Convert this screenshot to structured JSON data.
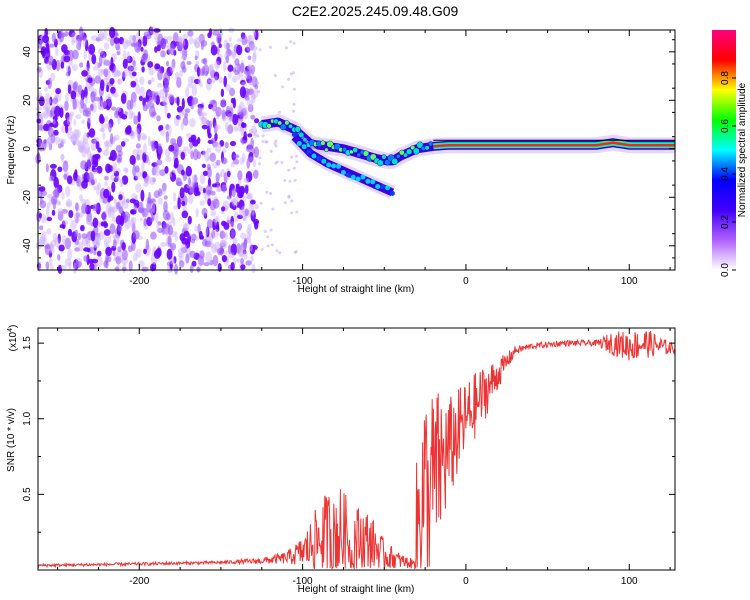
{
  "title": "C2E2.2025.245.09.48.G09",
  "chart_data": [
    {
      "type": "heatmap",
      "xlabel": "Height of straight line (km)",
      "ylabel": "Frequency (Hz)",
      "xlim": [
        -262,
        128
      ],
      "ylim": [
        -50,
        49
      ],
      "xticks": [
        -200,
        -100,
        0,
        100
      ],
      "xtick_labels": [
        "-200",
        "-100",
        "0",
        "100"
      ],
      "yticks": [
        -40,
        -20,
        0,
        20,
        40
      ],
      "ytick_labels": [
        "-40",
        "-20",
        "0",
        "20",
        "40"
      ],
      "colorbar": {
        "label": "Normalized spectral amplitude",
        "range": [
          0,
          1
        ],
        "ticks": [
          0.0,
          0.2,
          0.4,
          0.6,
          0.8
        ],
        "tick_labels": [
          "0.0",
          "0.2",
          "0.4",
          "0.6",
          "0.8"
        ],
        "colormap": [
          "#ffffff",
          "#b060ff",
          "#4000ff",
          "#0000ff",
          "#00ffff",
          "#00ff00",
          "#ffff00",
          "#ff0000",
          "#ff0080"
        ]
      },
      "noise_region_x": [
        -262,
        -128
      ],
      "ridge": {
        "x": [
          -125,
          -115,
          -105,
          -95,
          -85,
          -75,
          -65,
          -55,
          -48,
          -45,
          -40,
          -30,
          -20,
          -10,
          0,
          20,
          40,
          60,
          80,
          90,
          100,
          128
        ],
        "y": [
          10,
          11,
          8,
          2,
          1,
          0,
          -2,
          -4,
          -5,
          -5,
          -3,
          0,
          1,
          1.5,
          1.5,
          1.5,
          1.5,
          1.5,
          1.5,
          2.5,
          1.5,
          1.5
        ]
      },
      "lower_branch": {
        "x": [
          -105,
          -95,
          -85,
          -75,
          -65,
          -55,
          -45
        ],
        "y": [
          5,
          -2,
          -6,
          -9,
          -12,
          -15,
          -18
        ]
      }
    },
    {
      "type": "line",
      "xlabel": "Height of straight line (km)",
      "ylabel": "SNR (10 * v/v)",
      "scale_label": "(x10",
      "scale_exp": "4",
      "scale_close": ")",
      "xlim": [
        -262,
        128
      ],
      "ylim": [
        0,
        1.6
      ],
      "xticks": [
        -200,
        -100,
        0,
        100
      ],
      "xtick_labels": [
        "-200",
        "-100",
        "0",
        "100"
      ],
      "yticks": [
        0.5,
        1.0,
        1.5
      ],
      "ytick_labels": [
        "0.5",
        "1.0",
        "1.5"
      ],
      "color": "#ee3333",
      "envelope": {
        "x": [
          -262,
          -200,
          -150,
          -125,
          -110,
          -100,
          -90,
          -80,
          -70,
          -60,
          -50,
          -40,
          -32,
          -30,
          -26,
          -20,
          -15,
          -10,
          -5,
          0,
          10,
          20,
          30,
          40,
          60,
          80,
          90,
          100,
          110,
          128
        ],
        "base": [
          0.03,
          0.04,
          0.05,
          0.06,
          0.08,
          0.12,
          0.2,
          0.25,
          0.2,
          0.2,
          0.1,
          0.06,
          0.04,
          0.3,
          0.5,
          0.6,
          0.7,
          0.8,
          0.9,
          1.0,
          1.15,
          1.3,
          1.45,
          1.48,
          1.5,
          1.5,
          1.5,
          1.48,
          1.5,
          1.46
        ],
        "amp": [
          0.01,
          0.01,
          0.01,
          0.02,
          0.04,
          0.1,
          0.25,
          0.35,
          0.25,
          0.2,
          0.1,
          0.05,
          0.03,
          0.5,
          0.7,
          0.6,
          0.5,
          0.35,
          0.3,
          0.25,
          0.2,
          0.1,
          0.03,
          0.02,
          0.02,
          0.02,
          0.08,
          0.1,
          0.1,
          0.03
        ]
      }
    }
  ]
}
